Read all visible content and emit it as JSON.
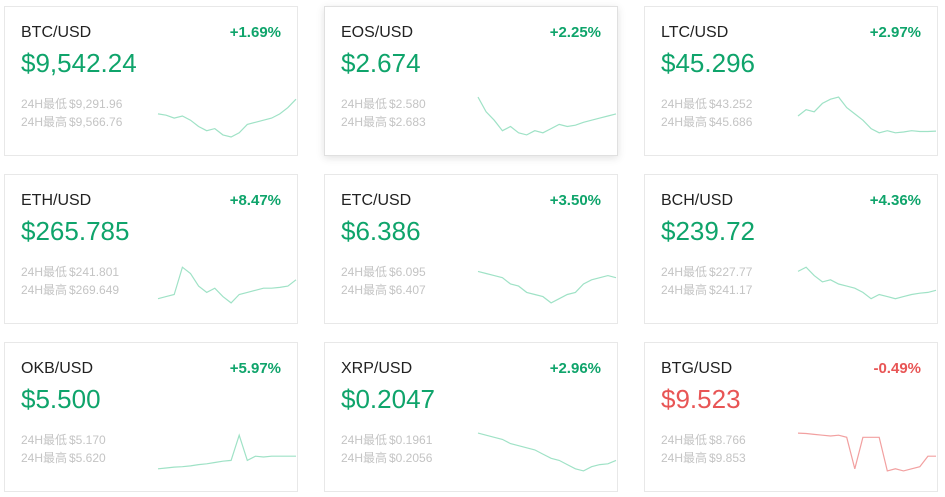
{
  "colors": {
    "up": "#0fa46b",
    "down": "#e85555",
    "spark_up": "#9fe2c6",
    "spark_down": "#f2a0a0"
  },
  "labels": {
    "low": "24H最低",
    "high": "24H最高"
  },
  "tickers": [
    {
      "pair": "BTC/USD",
      "change": "+1.69%",
      "price": "$9,542.24",
      "low": "$9,291.96",
      "high": "$9,566.76",
      "direction": "up",
      "spark": [
        0.45,
        0.48,
        0.55,
        0.5,
        0.6,
        0.75,
        0.85,
        0.8,
        0.95,
        1.0,
        0.9,
        0.7,
        0.65,
        0.6,
        0.55,
        0.45,
        0.3,
        0.1
      ]
    },
    {
      "pair": "EOS/USD",
      "change": "+2.25%",
      "price": "$2.674",
      "low": "$2.580",
      "high": "$2.683",
      "direction": "up",
      "spark": [
        0.05,
        0.4,
        0.6,
        0.85,
        0.75,
        0.9,
        0.95,
        0.85,
        0.9,
        0.8,
        0.7,
        0.75,
        0.72,
        0.65,
        0.6,
        0.55,
        0.5,
        0.45
      ]
    },
    {
      "pair": "LTC/USD",
      "change": "+2.97%",
      "price": "$45.296",
      "low": "$43.252",
      "high": "$45.686",
      "direction": "up",
      "spark": [
        0.5,
        0.35,
        0.4,
        0.2,
        0.1,
        0.05,
        0.3,
        0.45,
        0.6,
        0.8,
        0.9,
        0.85,
        0.9,
        0.88,
        0.85,
        0.87,
        0.87,
        0.86
      ]
    },
    {
      "pair": "ETH/USD",
      "change": "+8.47%",
      "price": "$265.785",
      "low": "$241.801",
      "high": "$269.649",
      "direction": "up",
      "spark": [
        0.85,
        0.8,
        0.75,
        0.1,
        0.25,
        0.55,
        0.7,
        0.6,
        0.8,
        0.95,
        0.75,
        0.7,
        0.65,
        0.6,
        0.6,
        0.58,
        0.55,
        0.4
      ]
    },
    {
      "pair": "ETC/USD",
      "change": "+3.50%",
      "price": "$6.386",
      "low": "$6.095",
      "high": "$6.407",
      "direction": "up",
      "spark": [
        0.2,
        0.25,
        0.3,
        0.35,
        0.5,
        0.55,
        0.7,
        0.75,
        0.8,
        0.95,
        0.85,
        0.75,
        0.7,
        0.5,
        0.4,
        0.35,
        0.3,
        0.35
      ]
    },
    {
      "pair": "BCH/USD",
      "change": "+4.36%",
      "price": "$239.72",
      "low": "$227.77",
      "high": "$241.17",
      "direction": "up",
      "spark": [
        0.2,
        0.1,
        0.3,
        0.45,
        0.4,
        0.5,
        0.55,
        0.6,
        0.7,
        0.85,
        0.75,
        0.8,
        0.85,
        0.8,
        0.75,
        0.72,
        0.7,
        0.65
      ]
    },
    {
      "pair": "OKB/USD",
      "change": "+5.97%",
      "price": "$5.500",
      "low": "$5.170",
      "high": "$5.620",
      "direction": "up",
      "spark": [
        0.9,
        0.88,
        0.86,
        0.85,
        0.83,
        0.8,
        0.78,
        0.75,
        0.72,
        0.7,
        0.1,
        0.7,
        0.6,
        0.62,
        0.6,
        0.6,
        0.6,
        0.6
      ]
    },
    {
      "pair": "XRP/USD",
      "change": "+2.96%",
      "price": "$0.2047",
      "low": "$0.1961",
      "high": "$0.2056",
      "direction": "up",
      "spark": [
        0.05,
        0.1,
        0.15,
        0.2,
        0.3,
        0.35,
        0.4,
        0.45,
        0.55,
        0.65,
        0.7,
        0.8,
        0.9,
        0.95,
        0.85,
        0.8,
        0.78,
        0.7
      ]
    },
    {
      "pair": "BTG/USD",
      "change": "-0.49%",
      "price": "$9.523",
      "low": "$8.766",
      "high": "$9.853",
      "direction": "down",
      "spark": [
        0.05,
        0.06,
        0.08,
        0.1,
        0.12,
        0.1,
        0.15,
        0.9,
        0.15,
        0.15,
        0.15,
        0.95,
        0.9,
        0.95,
        0.9,
        0.85,
        0.6,
        0.6
      ]
    }
  ]
}
